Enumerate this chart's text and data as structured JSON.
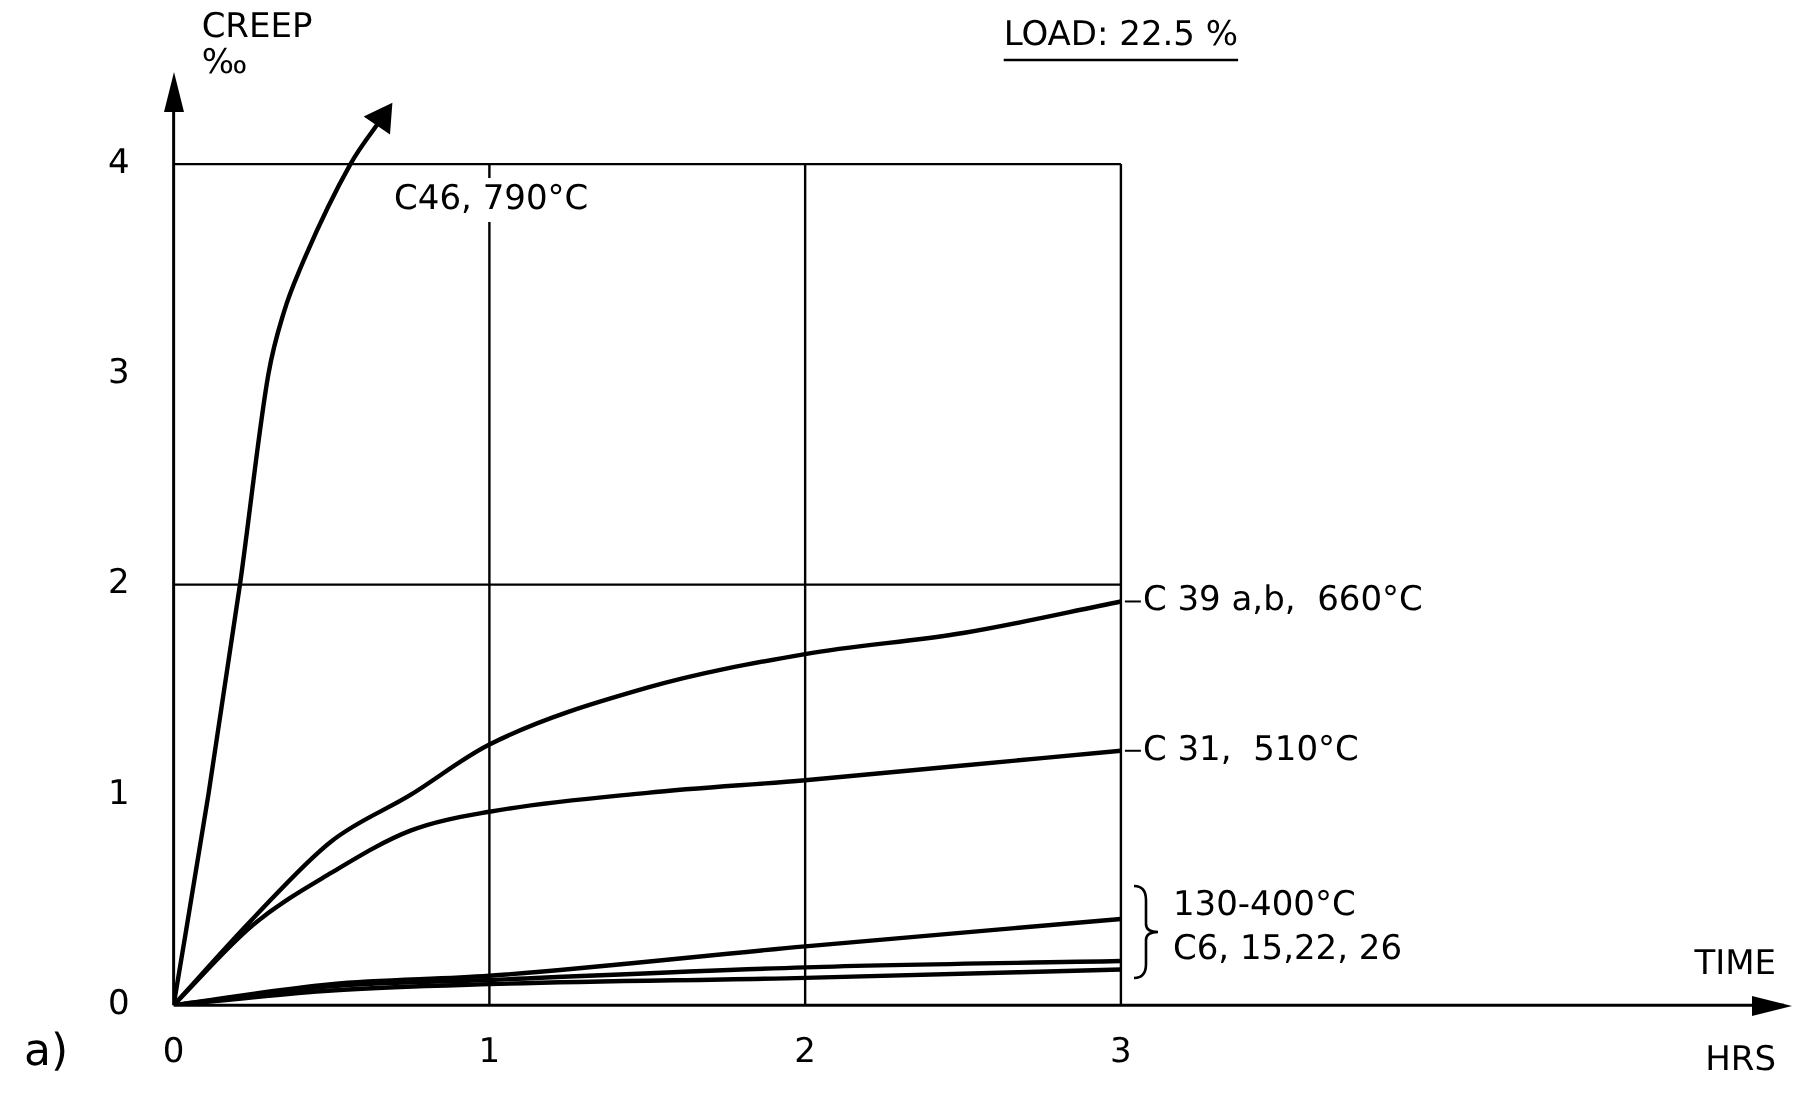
{
  "chart_data": {
    "type": "line",
    "title": "LOAD: 22.5 %",
    "xlabel": "TIME",
    "ylabel": "CREEP\n‰",
    "xlim": [
      0,
      5.1
    ],
    "ylim": [
      0,
      4.4
    ],
    "xticks": [
      0,
      1,
      2,
      3
    ],
    "yticks": [
      0,
      1,
      2,
      3,
      4
    ],
    "grid": false,
    "legend": "right",
    "marker": "none",
    "line_style": "solid",
    "ref_lines": [
      {
        "axis": "y",
        "value": 4,
        "color": "#000000"
      },
      {
        "axis": "y",
        "value": 2,
        "color": "#000000"
      },
      {
        "axis": "x",
        "value": 1,
        "color": "#000000"
      },
      {
        "axis": "x",
        "value": 2,
        "color": "#000000"
      },
      {
        "axis": "x",
        "value": 3,
        "color": "#000000"
      }
    ],
    "series": [
      {
        "name": "C46, 790°C",
        "color": "#000000",
        "x": [
          0,
          0.11,
          0.21,
          0.3,
          0.35,
          0.4,
          0.56,
          0.66
        ],
        "values": [
          0,
          1,
          2,
          3,
          3.3,
          3.5,
          4,
          4.22
        ]
      },
      {
        "name": "C 39 a,b,  660°C",
        "color": "#000000",
        "x": [
          0,
          0.25,
          0.5,
          0.75,
          1,
          1.5,
          2,
          2.5,
          3
        ],
        "values": [
          0,
          0.41,
          0.78,
          1.0,
          1.24,
          1.51,
          1.67,
          1.77,
          1.92
        ]
      },
      {
        "name": "C 31,  510°C",
        "color": "#000000",
        "x": [
          0,
          0.25,
          0.5,
          0.75,
          1,
          1.5,
          2,
          2.5,
          3
        ],
        "values": [
          0,
          0.38,
          0.63,
          0.83,
          0.92,
          1.01,
          1.07,
          1.14,
          1.21
        ]
      },
      {
        "color": "#000000",
        "x": [
          0,
          0.5,
          1,
          2,
          3
        ],
        "values": [
          0,
          0.1,
          0.14,
          0.28,
          0.41
        ]
      },
      {
        "color": "#000000",
        "x": [
          0,
          0.5,
          1,
          2,
          3
        ],
        "values": [
          0,
          0.09,
          0.12,
          0.18,
          0.21
        ]
      },
      {
        "color": "#000000",
        "x": [
          0,
          0.5,
          1,
          2,
          3
        ],
        "values": [
          0,
          0.07,
          0.1,
          0.13,
          0.17
        ]
      }
    ],
    "annotations": [
      "130-400°C\nC6, 15,22, 26",
      "HRS",
      "a)"
    ]
  }
}
